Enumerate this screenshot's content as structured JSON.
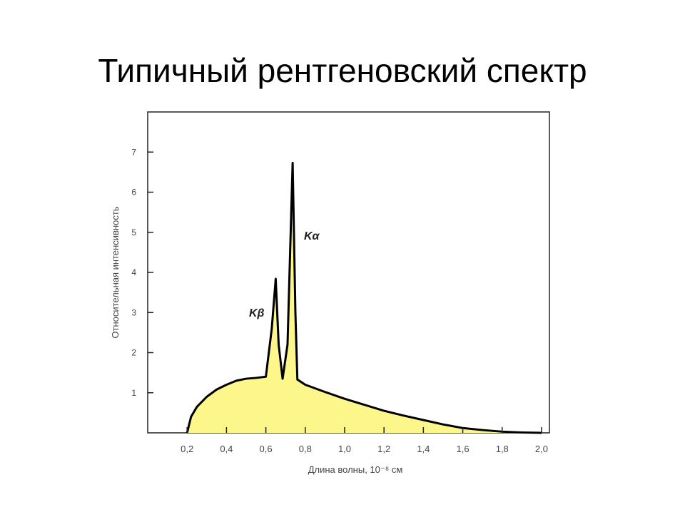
{
  "title": "Типичный рентгеновский спектр",
  "chart_data": {
    "type": "area",
    "x_label": "Длина волны, 10⁻⁸ см",
    "y_label": "Относительная интенсивность",
    "annotations": [
      "Kα",
      "Kβ"
    ],
    "x": [
      0.2,
      0.22,
      0.25,
      0.3,
      0.35,
      0.4,
      0.45,
      0.5,
      0.55,
      0.6,
      0.63,
      0.65,
      0.665,
      0.685,
      0.71,
      0.736,
      0.75,
      0.76,
      0.8,
      0.9,
      1.0,
      1.1,
      1.2,
      1.3,
      1.4,
      1.5,
      1.6,
      1.7,
      1.8,
      1.9,
      2.0
    ],
    "series": [
      {
        "color": "#000000",
        "fill": "#fdf68a",
        "values": [
          0,
          0.4,
          0.65,
          0.9,
          1.08,
          1.2,
          1.3,
          1.35,
          1.37,
          1.4,
          2.6,
          3.84,
          2.2,
          1.35,
          2.2,
          6.73,
          3.0,
          1.33,
          1.2,
          1.02,
          0.85,
          0.7,
          0.55,
          0.43,
          0.32,
          0.21,
          0.12,
          0.07,
          0.03,
          0.01,
          0
        ]
      }
    ],
    "xlim": [
      0,
      2.04
    ],
    "ylim": [
      0,
      8
    ],
    "xticks": [
      {
        "value": 0.2,
        "label": "0,2"
      },
      {
        "value": 0.4,
        "label": "0,4"
      },
      {
        "value": 0.6,
        "label": "0,6"
      },
      {
        "value": 0.8,
        "label": "0,8"
      },
      {
        "value": 1.0,
        "label": "1,0"
      },
      {
        "value": 1.2,
        "label": "1,2"
      },
      {
        "value": 1.4,
        "label": "1,4"
      },
      {
        "value": 1.6,
        "label": "1,6"
      },
      {
        "value": 1.8,
        "label": "1,8"
      },
      {
        "value": 2.0,
        "label": "2,0"
      }
    ],
    "yticks": [
      1,
      2,
      3,
      4,
      5,
      6,
      7
    ]
  }
}
